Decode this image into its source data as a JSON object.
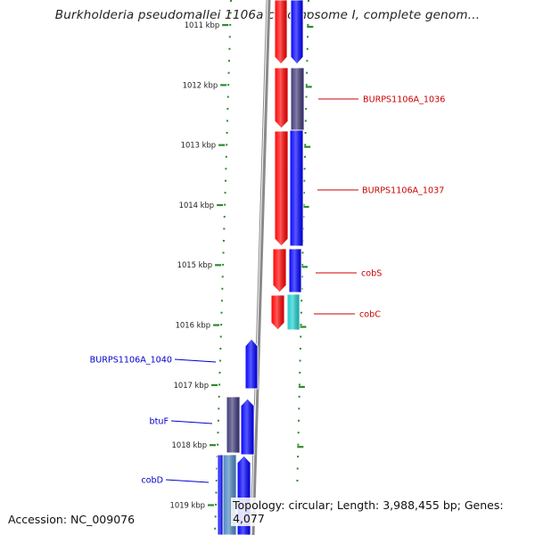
{
  "title": "Burkholderia pseudomallei 1106a chromosome I, complete genom...",
  "footer": {
    "accession": "Accession: NC_009076",
    "stats": "Topology: circular; Length: 3,988,455 bp; Genes: 4,077"
  },
  "colors": {
    "forward": "#ff0000",
    "reverse": "#0000ff",
    "dark_purple": "#3e3878",
    "cyan": "#1ecccc",
    "steel_blue": "#4a86c0",
    "tick_green": "#2e8b2e",
    "label_red": "#cc0000",
    "label_blue": "#0000cc"
  },
  "kbp_ticks": [
    "1011 kbp",
    "1012 kbp",
    "1013 kbp",
    "1014 kbp",
    "1015 kbp",
    "1016 kbp",
    "1017 kbp",
    "1018 kbp",
    "1019 kbp"
  ],
  "gene_labels": [
    {
      "text": "BURPS1106A_1036",
      "color": "red"
    },
    {
      "text": "BURPS1106A_1037",
      "color": "red"
    },
    {
      "text": "cobS",
      "color": "red"
    },
    {
      "text": "cobC",
      "color": "red"
    },
    {
      "text": "BURPS1106A_1040",
      "color": "blue"
    },
    {
      "text": "btuF",
      "color": "blue"
    },
    {
      "text": "cobD",
      "color": "blue"
    }
  ]
}
